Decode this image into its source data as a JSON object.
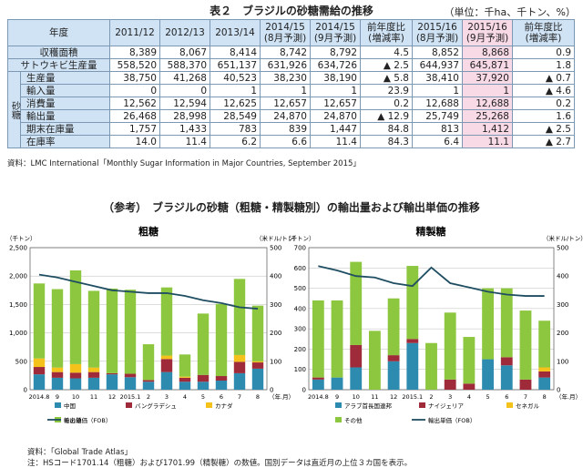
{
  "table": {
    "title": "表２　ブラジルの砂糖需給の推移",
    "unit": "（単位：千ha、千トン、%）",
    "header_year": "年度",
    "columns": [
      "2011/12",
      "2012/13",
      "2013/14",
      "2014/15\n(8月予測)",
      "2014/15\n(9月予測)",
      "前年度比\n(増減率)",
      "2015/16\n(8月予測)",
      "2015/16\n(9月予測)",
      "前年度比\n(増減率)"
    ],
    "side_label": "砂糖",
    "rows": [
      {
        "label": "収穫面積",
        "values": [
          "8,389",
          "8,067",
          "8,414",
          "8,742",
          "8,792",
          "4.5",
          "8,852",
          "8,868",
          "0.9"
        ]
      },
      {
        "label": "サトウキビ生産量",
        "values": [
          "558,520",
          "588,370",
          "651,137",
          "631,926",
          "634,726",
          "▲ 2.5",
          "644,937",
          "645,871",
          "1.8"
        ]
      },
      {
        "label": "生産量",
        "values": [
          "38,750",
          "41,268",
          "40,523",
          "38,230",
          "38,190",
          "▲ 5.8",
          "38,410",
          "37,920",
          "▲ 0.7"
        ]
      },
      {
        "label": "輸入量",
        "values": [
          "0",
          "0",
          "1",
          "1",
          "1",
          "23.9",
          "1",
          "1",
          "▲ 4.6"
        ]
      },
      {
        "label": "消費量",
        "values": [
          "12,562",
          "12,594",
          "12,625",
          "12,657",
          "12,657",
          "0.2",
          "12,688",
          "12,688",
          "0.2"
        ]
      },
      {
        "label": "輸出量",
        "values": [
          "26,468",
          "28,998",
          "28,549",
          "24,870",
          "24,870",
          "▲ 12.9",
          "25,749",
          "25,268",
          "1.6"
        ]
      },
      {
        "label": "期末在庫量",
        "values": [
          "1,757",
          "1,433",
          "783",
          "839",
          "1,447",
          "84.8",
          "813",
          "1,412",
          "▲ 2.5"
        ]
      },
      {
        "label": "在庫率",
        "values": [
          "14.0",
          "11.4",
          "6.2",
          "6.6",
          "11.4",
          "84.3",
          "6.4",
          "11.1",
          "▲ 2.7"
        ]
      }
    ],
    "source": "資料：LMC International「Monthly Sugar Information in Major Countries, September 2015」"
  },
  "subtitle": "（参考）　ブラジルの砂糖（粗糖・精製糖別）の輸出量および輸出単価の推移",
  "colors": {
    "china": "#2e8bb0",
    "bangladesh": "#9e2a3a",
    "canada": "#f5c21b",
    "other": "#8dc63f",
    "price": "#1f4e62"
  },
  "chart_data": [
    {
      "type": "bar",
      "title": "粗糖",
      "ylabel": "（千トン）",
      "y2label": "（米ドル/トン）",
      "ylim": [
        0,
        2500
      ],
      "y2lim": [
        0,
        500
      ],
      "categories": [
        "2014.8",
        "9",
        "10",
        "11",
        "12",
        "2015.1",
        "2",
        "3",
        "4",
        "5",
        "6",
        "7",
        "8"
      ],
      "x_unit": "（年.月）",
      "yticks": [
        "0",
        "500",
        "1,000",
        "1,500",
        "2,000",
        "2,500"
      ],
      "y2ticks": [
        "0",
        "100",
        "200",
        "300",
        "400",
        "500"
      ],
      "series": [
        {
          "name": "中国",
          "values": [
            270,
            210,
            200,
            210,
            270,
            220,
            140,
            310,
            140,
            140,
            160,
            290,
            370
          ]
        },
        {
          "name": "バングラデシュ",
          "values": [
            130,
            100,
            100,
            100,
            20,
            60,
            30,
            230,
            70,
            120,
            80,
            200,
            110
          ]
        },
        {
          "name": "カナダ",
          "values": [
            150,
            80,
            150,
            80,
            0,
            0,
            0,
            60,
            20,
            0,
            0,
            120,
            20
          ]
        },
        {
          "name": "その他",
          "values": [
            1320,
            1380,
            1650,
            1350,
            1490,
            1480,
            630,
            1200,
            390,
            1080,
            1270,
            1340,
            980
          ]
        }
      ],
      "line": {
        "name": "輸出単価（FOB）",
        "values": [
          405,
          395,
          380,
          365,
          350,
          345,
          340,
          340,
          330,
          315,
          305,
          290,
          285
        ]
      }
    },
    {
      "type": "bar",
      "title": "精製糖",
      "ylabel": "（千トン）",
      "y2label": "（米ドル/トン）",
      "ylim": [
        0,
        700
      ],
      "y2lim": [
        0,
        500
      ],
      "categories": [
        "2014.8",
        "9",
        "10",
        "11",
        "12",
        "2015.1",
        "2",
        "3",
        "4",
        "5",
        "6",
        "7",
        "8"
      ],
      "x_unit": "（年.月）",
      "yticks": [
        "0",
        "100",
        "200",
        "300",
        "400",
        "500",
        "600",
        "700"
      ],
      "y2ticks": [
        "0",
        "100",
        "200",
        "300",
        "400",
        "500"
      ],
      "series": [
        {
          "name": "アラブ首長国連邦",
          "values": [
            50,
            60,
            110,
            0,
            140,
            230,
            0,
            0,
            0,
            150,
            120,
            0,
            60
          ]
        },
        {
          "name": "ナイジェリア",
          "values": [
            10,
            0,
            110,
            0,
            30,
            20,
            0,
            50,
            30,
            0,
            40,
            50,
            30
          ]
        },
        {
          "name": "セネガル",
          "values": [
            0,
            0,
            0,
            0,
            0,
            0,
            0,
            0,
            0,
            0,
            0,
            0,
            20
          ]
        },
        {
          "name": "その他",
          "values": [
            380,
            380,
            410,
            290,
            280,
            360,
            230,
            330,
            230,
            350,
            340,
            340,
            230
          ]
        }
      ],
      "line": {
        "name": "輸出単価（FOB）",
        "values": [
          435,
          420,
          400,
          395,
          375,
          365,
          430,
          375,
          360,
          345,
          335,
          330,
          330
        ]
      }
    }
  ],
  "source2": "資料：「Global Trade Atlas」",
  "note2": "注：HSコード1701.14（粗糖）および1701.99（精製糖）の数値。国別データは直近月の上位３カ国を表示。"
}
